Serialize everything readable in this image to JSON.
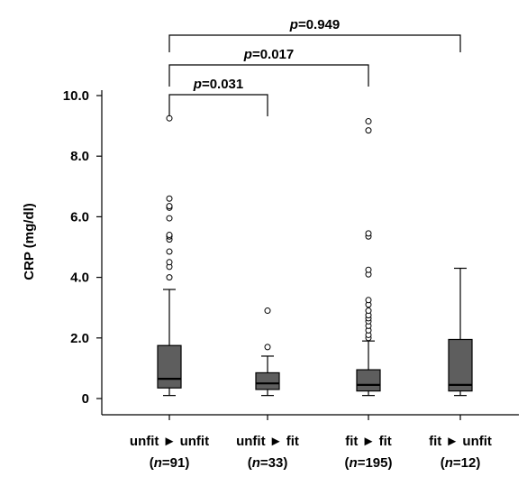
{
  "chart_data": {
    "type": "box",
    "title": "",
    "ylabel": "CRP (mg/dl)",
    "xlabel": "",
    "ylim": [
      0,
      10.0
    ],
    "yticks": [
      "0",
      "2.0",
      "4.0",
      "6.0",
      "8.0",
      "10.0"
    ],
    "ytick_values": [
      0,
      2,
      4,
      6,
      8,
      10
    ],
    "box_color": "#5e5e5e",
    "groups": [
      {
        "label": "unfit ► unfit",
        "n_label": "n",
        "n_value": "=91",
        "n_open": "(",
        "n_close": ")",
        "whisker_low": 0.1,
        "q1": 0.35,
        "median": 0.65,
        "q3": 1.75,
        "whisker_high": 3.6,
        "outliers": [
          4.0,
          4.35,
          4.5,
          4.85,
          5.25,
          5.35,
          5.4,
          5.95,
          6.3,
          6.35,
          6.6,
          9.25
        ]
      },
      {
        "label": "unfit ► fit",
        "n_label": "n",
        "n_value": "=33",
        "n_open": "(",
        "n_close": ")",
        "whisker_low": 0.1,
        "q1": 0.3,
        "median": 0.5,
        "q3": 0.85,
        "whisker_high": 1.4,
        "outliers": [
          1.7,
          2.9
        ]
      },
      {
        "label": "fit ► fit",
        "n_label": "n",
        "n_value": "=195",
        "n_open": "(",
        "n_close": ")",
        "whisker_low": 0.1,
        "q1": 0.25,
        "median": 0.45,
        "q3": 0.95,
        "whisker_high": 1.9,
        "outliers": [
          2.0,
          2.1,
          2.25,
          2.4,
          2.55,
          2.65,
          2.75,
          2.9,
          3.1,
          3.25,
          4.1,
          4.25,
          5.35,
          5.45,
          8.85,
          9.15
        ]
      },
      {
        "label": "fit ► unfit",
        "n_label": "n",
        "n_value": "=12",
        "n_open": "(",
        "n_close": ")",
        "whisker_low": 0.1,
        "q1": 0.25,
        "median": 0.45,
        "q3": 1.95,
        "whisker_high": 4.3,
        "outliers": []
      }
    ],
    "comparisons": [
      {
        "from_group": 0,
        "to_group": 1,
        "p_symbol": "p",
        "p_value": "=0.031"
      },
      {
        "from_group": 0,
        "to_group": 2,
        "p_symbol": "p",
        "p_value": "=0.017"
      },
      {
        "from_group": 0,
        "to_group": 3,
        "p_symbol": "p",
        "p_value": "=0.949"
      }
    ]
  }
}
